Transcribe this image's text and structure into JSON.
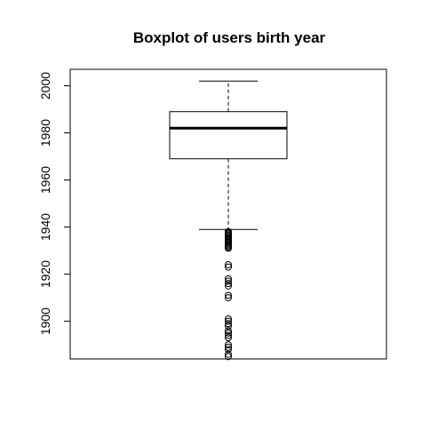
{
  "chart_data": {
    "type": "boxplot",
    "title": "Boxplot of users birth year",
    "xlabel": "",
    "ylabel": "",
    "ylim": [
      1884,
      2007
    ],
    "y_ticks": [
      1900,
      1920,
      1940,
      1960,
      1980,
      2000
    ],
    "grid": false,
    "box": {
      "whisker_low": 1939,
      "q1": 1969,
      "median": 1982,
      "q3": 1989,
      "whisker_high": 2002
    },
    "outliers": [
      1938,
      1937.5,
      1937,
      1936.5,
      1936,
      1935.5,
      1935,
      1934.5,
      1934,
      1933.5,
      1933,
      1932.5,
      1932,
      1931.5,
      1931,
      1924,
      1923,
      1918,
      1917,
      1916,
      1915,
      1911,
      1910,
      1901,
      1900,
      1899,
      1898,
      1896,
      1895,
      1894,
      1893,
      1890,
      1889,
      1888,
      1886,
      1885
    ]
  }
}
